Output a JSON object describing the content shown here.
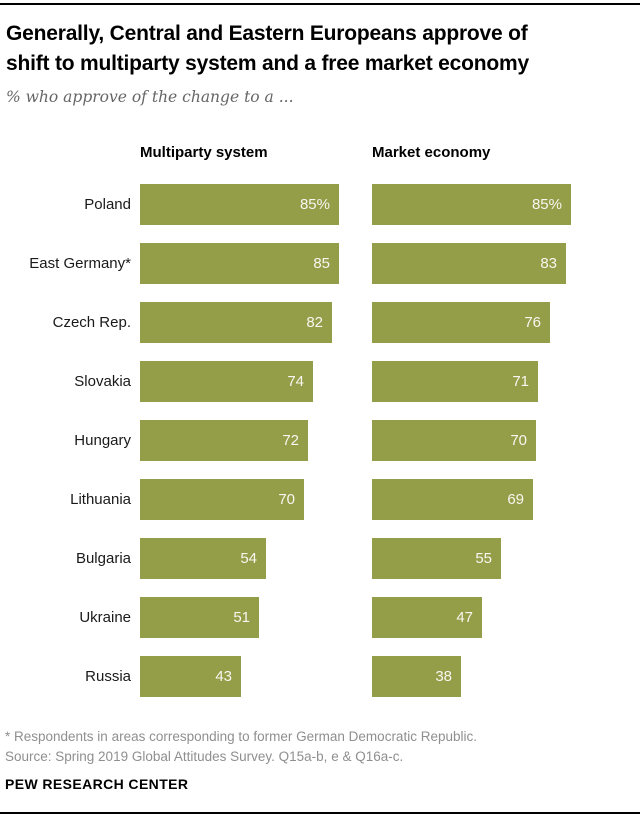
{
  "header": {
    "title_lines": [
      "Generally, Central and Eastern Europeans approve of",
      "shift to multiparty system and a free market economy"
    ],
    "subtitle": "% who approve of the change to a ..."
  },
  "chart_data": {
    "type": "bar",
    "orientation": "horizontal",
    "title": "Generally, Central and Eastern Europeans approve of shift to multiparty system and a free market economy",
    "subtitle": "% who approve of the change to a ...",
    "categories": [
      "Poland",
      "East Germany*",
      "Czech Rep.",
      "Slovakia",
      "Hungary",
      "Lithuania",
      "Bulgaria",
      "Ukraine",
      "Russia"
    ],
    "series": [
      {
        "name": "Multiparty system",
        "values": [
          85,
          85,
          82,
          74,
          72,
          70,
          54,
          51,
          43
        ],
        "labels": [
          "85%",
          "85",
          "82",
          "74",
          "72",
          "70",
          "54",
          "51",
          "43"
        ]
      },
      {
        "name": "Market economy",
        "values": [
          85,
          83,
          76,
          71,
          70,
          69,
          55,
          47,
          38
        ],
        "labels": [
          "85%",
          "83",
          "76",
          "71",
          "70",
          "69",
          "55",
          "47",
          "38"
        ]
      }
    ],
    "xlim": [
      0,
      100
    ],
    "grid": false,
    "legend_position": "column-headers",
    "value_label_position": "inside-right",
    "bar_color": "#949d48",
    "value_label_color": "#f7f7f0"
  },
  "footer": {
    "note": "* Respondents in areas corresponding to former German Democratic Republic.",
    "source": "Source: Spring 2019 Global Attitudes Survey. Q15a-b, e & Q16a-c.",
    "brand": "PEW RESEARCH CENTER"
  }
}
